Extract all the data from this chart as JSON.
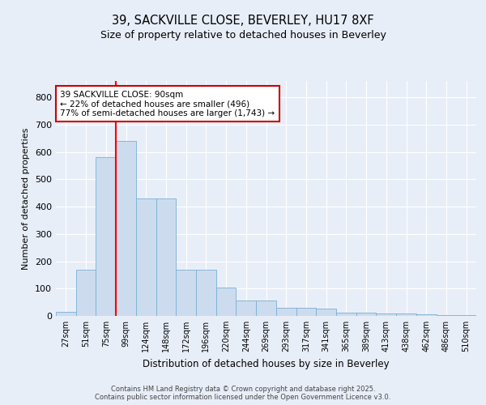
{
  "title_line1": "39, SACKVILLE CLOSE, BEVERLEY, HU17 8XF",
  "title_line2": "Size of property relative to detached houses in Beverley",
  "xlabel": "Distribution of detached houses by size in Beverley",
  "ylabel": "Number of detached properties",
  "bar_color": "#ccdcee",
  "bar_edge_color": "#7aafd4",
  "categories": [
    "27sqm",
    "51sqm",
    "75sqm",
    "99sqm",
    "124sqm",
    "148sqm",
    "172sqm",
    "196sqm",
    "220sqm",
    "244sqm",
    "269sqm",
    "293sqm",
    "317sqm",
    "341sqm",
    "365sqm",
    "389sqm",
    "413sqm",
    "438sqm",
    "462sqm",
    "486sqm",
    "510sqm"
  ],
  "values": [
    15,
    168,
    580,
    640,
    430,
    430,
    170,
    170,
    105,
    55,
    55,
    30,
    30,
    28,
    12,
    12,
    8,
    8,
    5,
    3,
    3
  ],
  "ylim": [
    0,
    860
  ],
  "yticks": [
    0,
    100,
    200,
    300,
    400,
    500,
    600,
    700,
    800
  ],
  "red_line_x": 2.5,
  "annotation_text": "39 SACKVILLE CLOSE: 90sqm\n← 22% of detached houses are smaller (496)\n77% of semi-detached houses are larger (1,743) →",
  "annotation_box_color": "#ffffff",
  "annotation_box_edge": "#cc0000",
  "footer_text": "Contains HM Land Registry data © Crown copyright and database right 2025.\nContains public sector information licensed under the Open Government Licence v3.0.",
  "background_color": "#e8eef8",
  "plot_bg_color": "#e8eef8",
  "grid_color": "#ffffff",
  "fig_width": 6.0,
  "fig_height": 5.0,
  "dpi": 100
}
